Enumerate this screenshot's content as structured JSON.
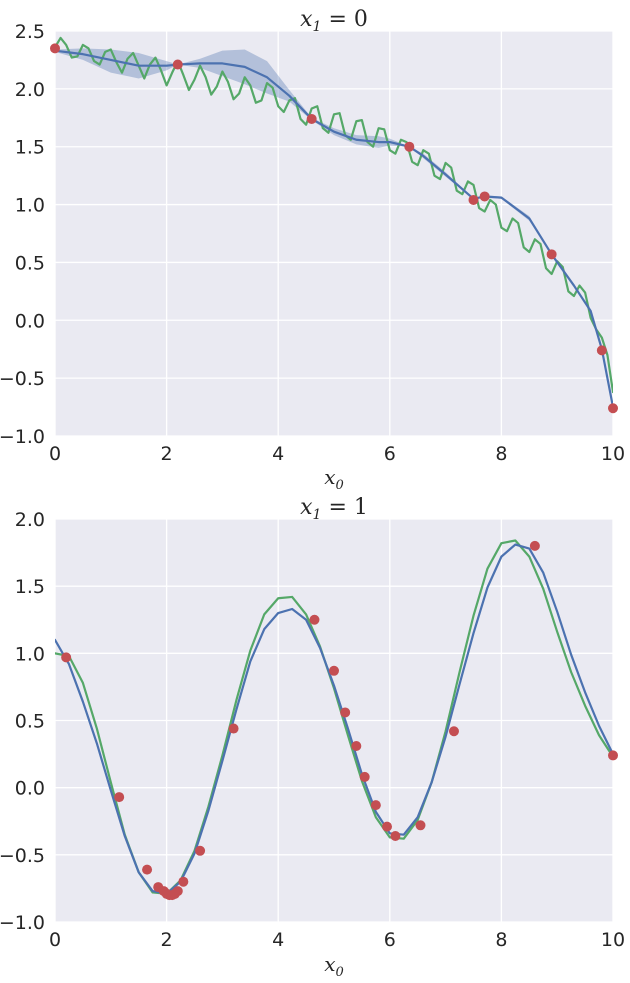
{
  "chart_data": [
    {
      "type": "line",
      "title": {
        "var": "x",
        "sub": "1",
        "rest": " = 0"
      },
      "xlabel": {
        "var": "x",
        "sub": "0"
      },
      "xlim": [
        0,
        10
      ],
      "ylim": [
        -1.0,
        2.5
      ],
      "xticks": [
        0,
        2,
        4,
        6,
        8,
        10
      ],
      "xtick_labels": [
        "0",
        "2",
        "4",
        "6",
        "8",
        "10"
      ],
      "yticks": [
        -1.0,
        -0.5,
        0.0,
        0.5,
        1.0,
        1.5,
        2.0,
        2.5
      ],
      "ytick_labels": [
        "−1.0",
        "−0.5",
        "0.0",
        "0.5",
        "1.0",
        "1.5",
        "2.0",
        "2.5"
      ],
      "grid": true,
      "series": [
        {
          "role": "true-function",
          "color": "#55A868",
          "x": [
            0,
            0.1,
            0.2,
            0.3,
            0.4,
            0.5,
            0.6,
            0.7,
            0.8,
            0.9,
            1.0,
            1.1,
            1.2,
            1.3,
            1.4,
            1.5,
            1.6,
            1.7,
            1.8,
            1.9,
            2.0,
            2.1,
            2.2,
            2.3,
            2.4,
            2.5,
            2.6,
            2.7,
            2.8,
            2.9,
            3.0,
            3.1,
            3.2,
            3.3,
            3.4,
            3.5,
            3.6,
            3.7,
            3.8,
            3.9,
            4.0,
            4.1,
            4.2,
            4.3,
            4.4,
            4.5,
            4.6,
            4.7,
            4.8,
            4.9,
            5.0,
            5.1,
            5.2,
            5.3,
            5.4,
            5.5,
            5.6,
            5.7,
            5.8,
            5.9,
            6.0,
            6.1,
            6.2,
            6.3,
            6.4,
            6.5,
            6.6,
            6.7,
            6.8,
            6.9,
            7.0,
            7.1,
            7.2,
            7.3,
            7.4,
            7.5,
            7.6,
            7.7,
            7.8,
            7.9,
            8.0,
            8.1,
            8.2,
            8.3,
            8.4,
            8.5,
            8.6,
            8.7,
            8.8,
            8.9,
            9.0,
            9.1,
            9.2,
            9.3,
            9.4,
            9.5,
            9.6,
            9.7,
            9.8,
            9.9,
            10.0
          ],
          "y": [
            2.36,
            2.44,
            2.38,
            2.27,
            2.28,
            2.38,
            2.35,
            2.24,
            2.21,
            2.32,
            2.34,
            2.23,
            2.14,
            2.26,
            2.31,
            2.2,
            2.09,
            2.21,
            2.27,
            2.16,
            2.03,
            2.14,
            2.24,
            2.12,
            1.99,
            2.08,
            2.2,
            2.1,
            1.95,
            2.02,
            2.15,
            2.06,
            1.91,
            1.96,
            2.1,
            2.03,
            1.88,
            1.9,
            2.05,
            2.01,
            1.85,
            1.8,
            1.9,
            1.92,
            1.74,
            1.69,
            1.83,
            1.85,
            1.66,
            1.62,
            1.78,
            1.79,
            1.6,
            1.56,
            1.72,
            1.73,
            1.54,
            1.5,
            1.66,
            1.65,
            1.47,
            1.44,
            1.56,
            1.54,
            1.37,
            1.34,
            1.47,
            1.44,
            1.25,
            1.22,
            1.36,
            1.32,
            1.12,
            1.09,
            1.2,
            1.17,
            0.97,
            0.94,
            1.04,
            1.0,
            0.8,
            0.77,
            0.88,
            0.84,
            0.63,
            0.59,
            0.7,
            0.66,
            0.45,
            0.4,
            0.51,
            0.46,
            0.25,
            0.21,
            0.3,
            0.24,
            0.02,
            -0.08,
            -0.15,
            -0.3,
            -0.62
          ]
        },
        {
          "role": "model-mean",
          "color": "#4C72B0",
          "x": [
            0,
            0.5,
            1.0,
            1.5,
            2.0,
            2.2,
            2.6,
            3.0,
            3.4,
            3.8,
            4.2,
            4.6,
            5.0,
            5.4,
            5.8,
            6.0,
            6.35,
            6.6,
            7.0,
            7.5,
            7.7,
            8.0,
            8.5,
            8.9,
            9.3,
            9.6,
            9.8,
            10.0
          ],
          "y": [
            2.33,
            2.3,
            2.25,
            2.2,
            2.2,
            2.21,
            2.22,
            2.22,
            2.19,
            2.1,
            1.94,
            1.74,
            1.63,
            1.56,
            1.54,
            1.54,
            1.5,
            1.42,
            1.26,
            1.05,
            1.07,
            1.06,
            0.88,
            0.57,
            0.3,
            0.08,
            -0.25,
            -0.75
          ]
        }
      ],
      "band": {
        "role": "confidence-band",
        "color": "#4C72B0",
        "x": [
          0,
          0.5,
          1.0,
          1.5,
          2.0,
          2.2,
          2.6,
          3.0,
          3.4,
          3.8,
          4.2,
          4.6,
          5.0,
          5.4,
          5.8,
          6.0,
          6.35,
          6.6,
          7.0,
          7.5,
          7.7,
          8.0,
          8.5,
          8.9,
          9.3,
          9.6,
          9.8,
          10.0
        ],
        "upper": [
          2.34,
          2.35,
          2.34,
          2.31,
          2.24,
          2.21,
          2.26,
          2.33,
          2.34,
          2.24,
          1.99,
          1.75,
          1.66,
          1.6,
          1.59,
          1.57,
          1.5,
          1.44,
          1.28,
          1.05,
          1.08,
          1.07,
          0.9,
          0.57,
          0.31,
          0.09,
          -0.25,
          -0.75
        ],
        "lower": [
          2.32,
          2.25,
          2.14,
          2.09,
          2.16,
          2.21,
          2.18,
          2.11,
          2.04,
          1.96,
          1.89,
          1.73,
          1.6,
          1.52,
          1.49,
          1.51,
          1.5,
          1.4,
          1.24,
          1.05,
          1.06,
          1.05,
          0.86,
          0.57,
          0.29,
          0.07,
          -0.25,
          -0.75
        ]
      },
      "points": {
        "role": "samples",
        "color": "#C44E52",
        "x": [
          0,
          2.2,
          4.6,
          6.35,
          7.5,
          7.7,
          8.9,
          9.8,
          10.0
        ],
        "y": [
          2.35,
          2.21,
          1.74,
          1.5,
          1.04,
          1.07,
          0.57,
          -0.26,
          -0.76
        ]
      }
    },
    {
      "type": "line",
      "title": {
        "var": "x",
        "sub": "1",
        "rest": " = 1"
      },
      "xlabel": {
        "var": "x",
        "sub": "0"
      },
      "xlim": [
        0,
        10
      ],
      "ylim": [
        -1.0,
        2.0
      ],
      "xticks": [
        0,
        2,
        4,
        6,
        8,
        10
      ],
      "xtick_labels": [
        "0",
        "2",
        "4",
        "6",
        "8",
        "10"
      ],
      "yticks": [
        -1.0,
        -0.5,
        0.0,
        0.5,
        1.0,
        1.5,
        2.0
      ],
      "ytick_labels": [
        "−1.0",
        "−0.5",
        "0.0",
        "0.5",
        "1.0",
        "1.5",
        "2.0"
      ],
      "grid": true,
      "series": [
        {
          "role": "true-function",
          "color": "#55A868",
          "x": [
            0,
            0.25,
            0.5,
            0.75,
            1.0,
            1.25,
            1.5,
            1.75,
            2.0,
            2.25,
            2.5,
            2.75,
            3.0,
            3.25,
            3.5,
            3.75,
            4.0,
            4.25,
            4.5,
            4.75,
            5.0,
            5.25,
            5.5,
            5.75,
            6.0,
            6.25,
            6.5,
            6.75,
            7.0,
            7.25,
            7.5,
            7.75,
            8.0,
            8.25,
            8.5,
            8.75,
            9.0,
            9.25,
            9.5,
            9.75,
            10.0
          ],
          "y": [
            1.0,
            0.98,
            0.78,
            0.44,
            0.04,
            -0.35,
            -0.63,
            -0.78,
            -0.79,
            -0.69,
            -0.47,
            -0.14,
            0.24,
            0.65,
            1.02,
            1.29,
            1.41,
            1.42,
            1.29,
            1.05,
            0.74,
            0.39,
            0.05,
            -0.22,
            -0.37,
            -0.38,
            -0.24,
            0.04,
            0.42,
            0.86,
            1.28,
            1.63,
            1.82,
            1.84,
            1.72,
            1.48,
            1.16,
            0.86,
            0.61,
            0.39,
            0.23
          ]
        },
        {
          "role": "model-mean",
          "color": "#4C72B0",
          "x": [
            0,
            0.25,
            0.5,
            0.75,
            1.0,
            1.25,
            1.5,
            1.75,
            2.0,
            2.25,
            2.5,
            2.75,
            3.0,
            3.25,
            3.5,
            3.75,
            4.0,
            4.25,
            4.5,
            4.75,
            5.0,
            5.25,
            5.5,
            5.75,
            6.0,
            6.25,
            6.5,
            6.75,
            7.0,
            7.25,
            7.5,
            7.75,
            8.0,
            8.25,
            8.5,
            8.75,
            9.0,
            9.25,
            9.5,
            9.75,
            10.0
          ],
          "y": [
            1.1,
            0.92,
            0.64,
            0.33,
            -0.02,
            -0.36,
            -0.63,
            -0.77,
            -0.79,
            -0.7,
            -0.49,
            -0.17,
            0.2,
            0.58,
            0.94,
            1.18,
            1.3,
            1.33,
            1.25,
            1.04,
            0.76,
            0.44,
            0.1,
            -0.18,
            -0.34,
            -0.35,
            -0.22,
            0.04,
            0.38,
            0.77,
            1.15,
            1.49,
            1.72,
            1.81,
            1.78,
            1.6,
            1.31,
            0.99,
            0.71,
            0.46,
            0.25
          ]
        }
      ],
      "points": {
        "role": "samples",
        "color": "#C44E52",
        "x": [
          0.2,
          1.15,
          1.65,
          1.85,
          1.95,
          2.0,
          2.05,
          2.1,
          2.15,
          2.2,
          2.3,
          2.6,
          3.2,
          4.65,
          5.0,
          5.2,
          5.4,
          5.55,
          5.75,
          5.95,
          6.1,
          6.55,
          7.15,
          8.6,
          10.0
        ],
        "y": [
          0.97,
          -0.07,
          -0.61,
          -0.74,
          -0.77,
          -0.79,
          -0.8,
          -0.8,
          -0.79,
          -0.77,
          -0.7,
          -0.47,
          0.44,
          1.25,
          0.87,
          0.56,
          0.31,
          0.08,
          -0.13,
          -0.29,
          -0.36,
          -0.28,
          0.42,
          1.8,
          0.24
        ]
      }
    }
  ]
}
